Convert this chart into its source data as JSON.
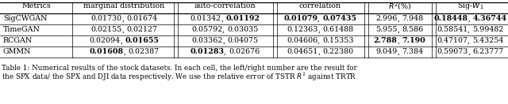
{
  "headers": [
    "Metrics",
    "marginal distribution",
    "auto-correlation",
    "correlation",
    "R2(%)",
    "Sig-W1"
  ],
  "rows": [
    {
      "name": "SigCWGAN",
      "marginal": [
        "0.01730",
        "0.01674"
      ],
      "marginal_bold": [
        false,
        false
      ],
      "autocorr": [
        "0.01342",
        "0.01192"
      ],
      "autocorr_bold": [
        false,
        true
      ],
      "correlation": [
        "0.01079",
        "0.07435"
      ],
      "correlation_bold": [
        true,
        true
      ],
      "r2": [
        "2.996",
        "7.948"
      ],
      "r2_bold": [
        false,
        false
      ],
      "sigw1": [
        "0.18448",
        "4.36744"
      ],
      "sigw1_bold": [
        true,
        true
      ]
    },
    {
      "name": "TimeGAN",
      "marginal": [
        "0.02155",
        "0.02127"
      ],
      "marginal_bold": [
        false,
        false
      ],
      "autocorr": [
        "0.05792",
        "0.03035"
      ],
      "autocorr_bold": [
        false,
        false
      ],
      "correlation": [
        "0.12363",
        "0.61488"
      ],
      "correlation_bold": [
        false,
        false
      ],
      "r2": [
        "5.955",
        "8.586"
      ],
      "r2_bold": [
        false,
        false
      ],
      "sigw1": [
        "0.58541",
        "5.99482"
      ],
      "sigw1_bold": [
        false,
        false
      ]
    },
    {
      "name": "RCGAN",
      "marginal": [
        "0.02094",
        "0.01655"
      ],
      "marginal_bold": [
        false,
        true
      ],
      "autocorr": [
        "0.03362",
        "0.04075"
      ],
      "autocorr_bold": [
        false,
        false
      ],
      "correlation": [
        "0.04606",
        "0.15353"
      ],
      "correlation_bold": [
        false,
        false
      ],
      "r2": [
        "2.788",
        "7.190"
      ],
      "r2_bold": [
        true,
        true
      ],
      "sigw1": [
        "0.47107",
        "5.43254"
      ],
      "sigw1_bold": [
        false,
        false
      ]
    },
    {
      "name": "GMMN",
      "marginal": [
        "0.01608",
        "0.02387"
      ],
      "marginal_bold": [
        true,
        false
      ],
      "autocorr": [
        "0.01283",
        "0.02676"
      ],
      "autocorr_bold": [
        true,
        false
      ],
      "correlation": [
        "0.04651",
        "0.22380"
      ],
      "correlation_bold": [
        false,
        false
      ],
      "r2": [
        "9.049",
        "7.384"
      ],
      "r2_bold": [
        false,
        false
      ],
      "sigw1": [
        "0.59073",
        "6.23777"
      ],
      "sigw1_bold": [
        false,
        false
      ]
    }
  ],
  "font_size": 6.8,
  "caption_font_size": 6.3,
  "bg_color": "#ffffff"
}
